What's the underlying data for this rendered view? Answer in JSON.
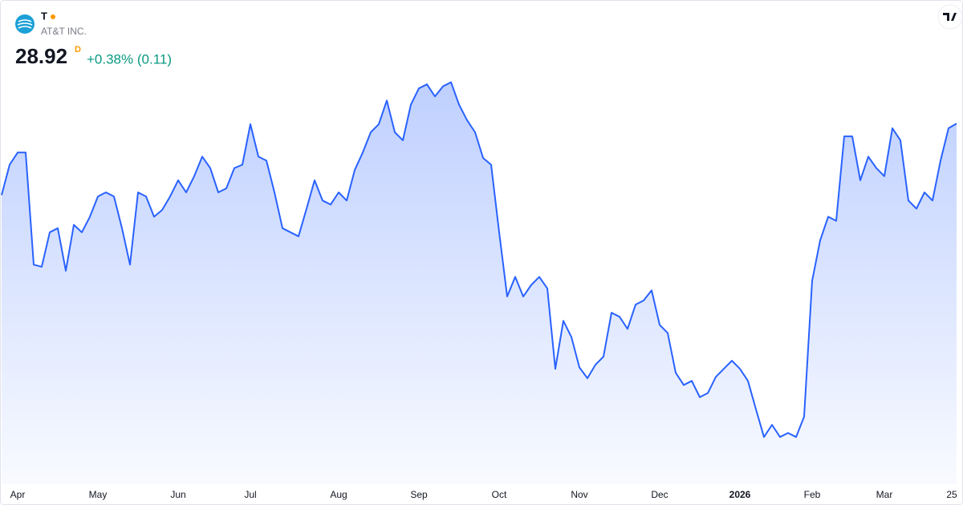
{
  "chart_data": {
    "type": "line",
    "title": "T",
    "subtitle": "AT&T INC.",
    "price": 28.92,
    "interval": "D",
    "change": "+0.38% (0.11)",
    "categories": [
      null,
      null,
      "Apr",
      null,
      null,
      null,
      null,
      null,
      null,
      null,
      null,
      null,
      "May",
      null,
      null,
      null,
      null,
      null,
      null,
      null,
      null,
      null,
      "Jun",
      null,
      null,
      null,
      null,
      null,
      null,
      null,
      null,
      "Jul",
      null,
      null,
      null,
      null,
      null,
      null,
      null,
      null,
      null,
      null,
      "Aug",
      null,
      null,
      null,
      null,
      null,
      null,
      null,
      null,
      null,
      "Sep",
      null,
      null,
      null,
      null,
      null,
      null,
      null,
      null,
      null,
      "Oct",
      null,
      null,
      null,
      null,
      null,
      null,
      null,
      null,
      null,
      "Nov",
      null,
      null,
      null,
      null,
      null,
      null,
      null,
      null,
      null,
      "Dec",
      null,
      null,
      null,
      null,
      null,
      null,
      null,
      null,
      null,
      "2026",
      null,
      null,
      null,
      null,
      null,
      null,
      null,
      null,
      "Feb",
      null,
      null,
      null,
      null,
      null,
      null,
      null,
      null,
      "Mar",
      null,
      null,
      null,
      null,
      null,
      null,
      null,
      null,
      "25"
    ],
    "series": [
      {
        "name": "T",
        "color": "#2962ff",
        "values": [
          27.86,
          28.31,
          28.49,
          28.49,
          26.83,
          26.8,
          27.31,
          27.37,
          26.74,
          27.42,
          27.31,
          27.54,
          27.84,
          27.9,
          27.84,
          27.37,
          26.83,
          27.9,
          27.84,
          27.54,
          27.64,
          27.84,
          28.08,
          27.9,
          28.14,
          28.43,
          28.26,
          27.9,
          27.96,
          28.26,
          28.31,
          28.91,
          28.43,
          28.37,
          27.9,
          27.37,
          27.31,
          27.25,
          27.66,
          28.08,
          27.78,
          27.72,
          27.9,
          27.78,
          28.23,
          28.49,
          28.79,
          28.91,
          29.26,
          28.79,
          28.67,
          29.2,
          29.44,
          29.5,
          29.32,
          29.47,
          29.53,
          29.2,
          28.97,
          28.79,
          28.41,
          28.31,
          27.31,
          26.36,
          26.65,
          26.36,
          26.53,
          26.65,
          26.48,
          25.29,
          26.0,
          25.76,
          25.31,
          25.15,
          25.35,
          25.47,
          26.12,
          26.06,
          25.88,
          26.24,
          26.3,
          26.45,
          25.94,
          25.82,
          25.23,
          25.05,
          25.11,
          24.87,
          24.93,
          25.17,
          25.29,
          25.41,
          25.29,
          25.11,
          24.69,
          24.28,
          24.46,
          24.28,
          24.34,
          24.28,
          24.58,
          26.59,
          27.19,
          27.54,
          27.48,
          28.73,
          28.73,
          28.08,
          28.43,
          28.26,
          28.14,
          28.85,
          28.67,
          27.78,
          27.66,
          27.9,
          27.78,
          28.37,
          28.85,
          28.92
        ]
      }
    ],
    "ylim": [
      23.63,
      29.68
    ]
  }
}
